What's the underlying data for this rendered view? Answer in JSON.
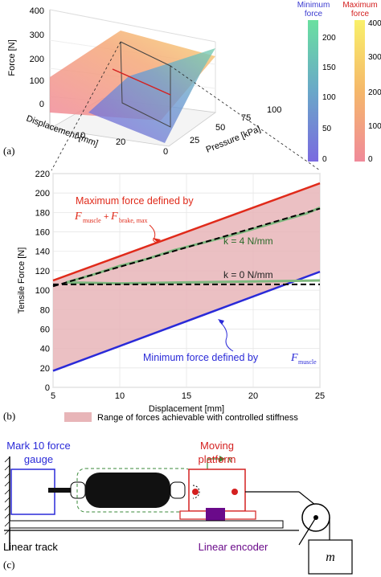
{
  "panel_a": {
    "label": "(a)",
    "z_axis_label": "Force [N]",
    "z_ticks": [
      "400",
      "300",
      "200",
      "100",
      "0"
    ],
    "disp_label": "Displacement [mm]",
    "disp_ticks": [
      "10",
      "20"
    ],
    "pressure_label": "Pressure [kPa]",
    "pressure_ticks": [
      "0",
      "25",
      "50",
      "75",
      "100"
    ],
    "colorbars": [
      {
        "title_line1": "Minimum",
        "title_line2": "force",
        "ticks": [
          "200",
          "150",
          "100",
          "50",
          "0"
        ],
        "color": "#3a3ad0"
      },
      {
        "title_line1": "Maximum",
        "title_line2": "force",
        "ticks": [
          "400",
          "300",
          "200",
          "100",
          "0"
        ],
        "color": "#d42020"
      }
    ]
  },
  "panel_b": {
    "label": "(b)",
    "legend_text": "Range of forces achievable with controlled stiffness",
    "annot_max_line1": "Maximum force defined by",
    "annot_max_formula_a": "F",
    "annot_max_sub_a": "muscle",
    "annot_max_plus": "+",
    "annot_max_formula_b": "F",
    "annot_max_sub_b": "brake, max",
    "annot_min_text": "Minimum force defined by",
    "annot_min_formula": "F",
    "annot_min_sub": "muscle",
    "k4_label": "k = 4 N/mm",
    "k0_label": "k = 0 N/mm"
  },
  "panel_c": {
    "label": "(c)",
    "gauge_line1": "Mark 10 force",
    "gauge_line2": "gauge",
    "platform_line1": "Moving",
    "platform_line2": "platform",
    "x_axis_label": "x",
    "track_label": "Linear track",
    "encoder_label": "Linear encoder",
    "mass_label": "m"
  },
  "chart_data": {
    "type": "line",
    "title": "",
    "xlabel": "Displacement [mm]",
    "ylabel": "Tensile Force [N]",
    "xlim": [
      5,
      25
    ],
    "ylim": [
      0,
      220
    ],
    "xticks": [
      5,
      10,
      15,
      20,
      25
    ],
    "yticks": [
      0,
      20,
      40,
      60,
      80,
      100,
      120,
      140,
      160,
      180,
      200,
      220
    ],
    "grid": true,
    "series": [
      {
        "name": "Maximum force",
        "color": "#e02a1a",
        "x": [
          5,
          25
        ],
        "y": [
          110,
          210
        ]
      },
      {
        "name": "Minimum force",
        "color": "#2a2ad8",
        "x": [
          5,
          25
        ],
        "y": [
          17,
          119
        ]
      },
      {
        "name": "k = 4 N/mm",
        "color": "#7fb87f",
        "x": [
          6,
          8,
          10,
          12,
          14,
          16,
          18,
          20,
          22,
          24,
          25
        ],
        "y": [
          108,
          116,
          125,
          132,
          141,
          148,
          155,
          163,
          171,
          179,
          185
        ]
      },
      {
        "name": "k = 0 N/mm",
        "color": "#7fb87f",
        "x": [
          6,
          10,
          15,
          20,
          25
        ],
        "y": [
          108,
          107,
          108,
          109,
          110
        ]
      },
      {
        "name": "k = 4 fit",
        "color": "#000000",
        "x": [
          5,
          25
        ],
        "y": [
          104,
          184
        ]
      },
      {
        "name": "k = 0 fit",
        "color": "#000000",
        "x": [
          5,
          25
        ],
        "y": [
          106,
          106
        ]
      }
    ]
  }
}
